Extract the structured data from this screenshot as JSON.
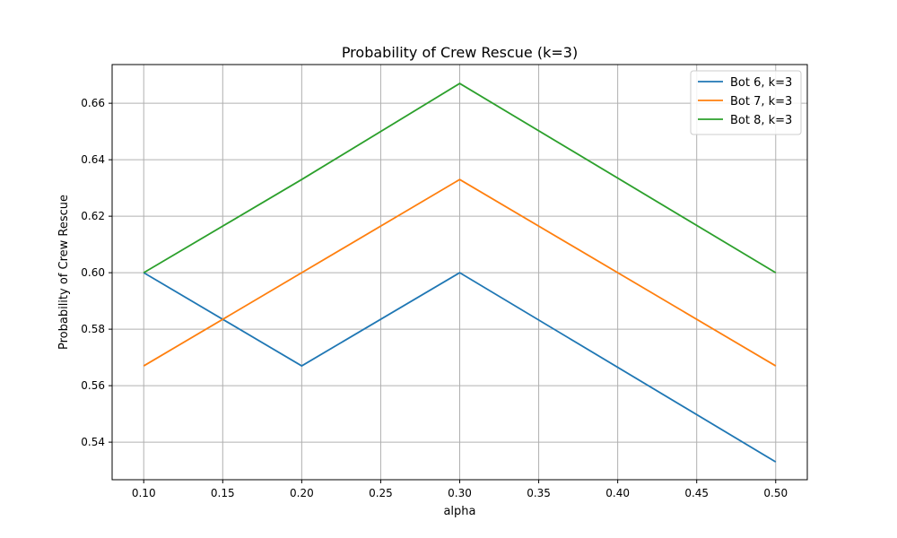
{
  "chart_data": {
    "type": "line",
    "title": "Probability of Crew Rescue (k=3)",
    "xlabel": "alpha",
    "ylabel": "Probability of Crew Rescue",
    "x": [
      0.1,
      0.2,
      0.3,
      0.5
    ],
    "series": [
      {
        "name": "Bot 6, k=3",
        "color": "#1f77b4",
        "values": [
          0.6,
          0.567,
          0.6,
          0.533
        ]
      },
      {
        "name": "Bot 7, k=3",
        "color": "#ff7f0e",
        "values": [
          0.567,
          0.6,
          0.633,
          0.567
        ]
      },
      {
        "name": "Bot 8, k=3",
        "color": "#2ca02c",
        "values": [
          0.6,
          0.633,
          0.667,
          0.6
        ]
      }
    ],
    "xlim": [
      0.08,
      0.52
    ],
    "ylim": [
      0.5267,
      0.6737
    ],
    "xticks": [
      0.1,
      0.15,
      0.2,
      0.25,
      0.3,
      0.35,
      0.4,
      0.45,
      0.5
    ],
    "xtick_labels": [
      "0.10",
      "0.15",
      "0.20",
      "0.25",
      "0.30",
      "0.35",
      "0.40",
      "0.45",
      "0.50"
    ],
    "yticks": [
      0.54,
      0.56,
      0.58,
      0.6,
      0.62,
      0.64,
      0.66
    ],
    "ytick_labels": [
      "0.54",
      "0.56",
      "0.58",
      "0.60",
      "0.62",
      "0.64",
      "0.66"
    ],
    "grid": true,
    "legend_position": "top-right"
  }
}
